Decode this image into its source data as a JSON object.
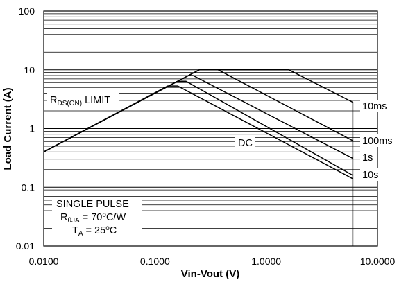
{
  "chart_data": {
    "type": "line",
    "title": "",
    "xlabel": "Vin-Vout (V)",
    "ylabel": "Load Current (A)",
    "x_scale": "log",
    "y_scale": "log",
    "xlim": [
      0.01,
      10
    ],
    "ylim": [
      0.01,
      100
    ],
    "x_ticks": [
      "0.0100",
      "0.1000",
      "1.0000",
      "10.0000"
    ],
    "y_ticks": [
      "100",
      "10",
      "1",
      "0.1",
      "0.01"
    ],
    "grid": "horizontal major and minor",
    "annotations": {
      "rds_limit": {
        "main": "R",
        "sub": "DS(ON)",
        "suffix": " LIMIT"
      },
      "dc": "DC",
      "pulse_box": {
        "line1": "SINGLE PULSE",
        "line2": {
          "main": "R",
          "sub": "θJA",
          "suffix": " = 70",
          "sup": "o",
          "end": "C/W"
        },
        "line3": {
          "main": "T",
          "sub": "A",
          "suffix": " = 25",
          "sup": "o",
          "end": "C"
        }
      }
    },
    "series": [
      {
        "name": "10ms",
        "points": [
          [
            0.01,
            0.4
          ],
          [
            0.25,
            10
          ],
          [
            1.6,
            10
          ],
          [
            6,
            2.8
          ],
          [
            6,
            0.01
          ]
        ]
      },
      {
        "name": "100ms",
        "points": [
          [
            0.01,
            0.4
          ],
          [
            0.25,
            10
          ],
          [
            0.37,
            10
          ],
          [
            6,
            0.62
          ]
        ]
      },
      {
        "name": "1s",
        "points": [
          [
            0.01,
            0.4
          ],
          [
            0.2,
            8
          ],
          [
            0.22,
            8
          ],
          [
            6,
            0.31
          ]
        ]
      },
      {
        "name": "10s",
        "points": [
          [
            0.01,
            0.4
          ],
          [
            0.16,
            6.4
          ],
          [
            0.19,
            6.4
          ],
          [
            6,
            0.16
          ]
        ]
      },
      {
        "name": "DC",
        "points": [
          [
            0.01,
            0.4
          ],
          [
            0.13,
            5.3
          ],
          [
            0.16,
            5.3
          ],
          [
            6,
            0.14
          ]
        ]
      }
    ]
  }
}
